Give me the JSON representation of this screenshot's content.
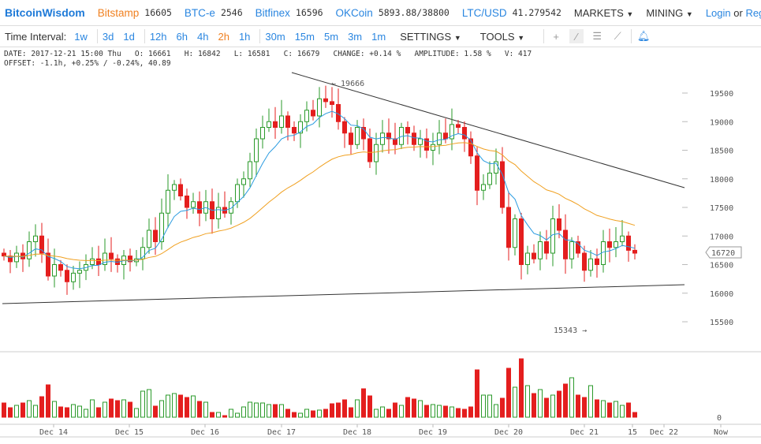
{
  "header": {
    "brand": "BitcoinWisdom",
    "markets": [
      {
        "name": "Bitstamp",
        "price": "16605"
      },
      {
        "name": "BTC-e",
        "price": "2546"
      },
      {
        "name": "Bitfinex",
        "price": "16596"
      },
      {
        "name": "OKCoin",
        "price": "5893.88/38800"
      },
      {
        "name": "LTC/USD",
        "price": "41.279542"
      }
    ],
    "menu_markets": "MARKETS",
    "menu_mining": "MINING",
    "login": "Login",
    "or": "or",
    "register": "Regis"
  },
  "toolbar": {
    "label": "Time Interval:",
    "intervals": [
      "1w",
      "3d",
      "1d",
      "12h",
      "6h",
      "4h",
      "2h",
      "1h",
      "30m",
      "15m",
      "5m",
      "3m",
      "1m"
    ],
    "selected": "2h",
    "settings": "SETTINGS",
    "tools": "TOOLS"
  },
  "info": {
    "line1": "DATE: 2017-12-21 15:00 Thu   O: 16661   H: 16842   L: 16581   C: 16679   CHANGE: +0.14 %   AMPLITUDE: 1.58 %   V: 417",
    "line2": "OFFSET: -1.1h, +0.25% / -0.24%, 40.89"
  },
  "colors": {
    "up": "#2a9a2a",
    "down": "#e41e1e",
    "ma_fast": "#2a9be0",
    "ma_slow": "#f0a020"
  },
  "chart_data": {
    "type": "candlestick",
    "y_ticks": [
      19500,
      19000,
      18500,
      18000,
      17500,
      17000,
      16500,
      16000,
      15500
    ],
    "x_labels": [
      "Dec 14",
      "Dec 15",
      "Dec 16",
      "Dec 17",
      "Dec 18",
      "Dec 19",
      "Dec 20",
      "Dec 21",
      "15",
      "Dec 22",
      "Now"
    ],
    "current_price": "16720",
    "high_note": "← 19666",
    "low_note": "15343 →",
    "volume_axis_label": "0",
    "closes": [
      16650,
      16550,
      16700,
      16600,
      16900,
      17000,
      16700,
      16300,
      16500,
      16400,
      16200,
      16350,
      16400,
      16500,
      16600,
      16500,
      16700,
      16600,
      16500,
      16650,
      16550,
      16600,
      16800,
      17100,
      16900,
      17400,
      17800,
      17900,
      17700,
      17500,
      17600,
      17400,
      17600,
      17300,
      17500,
      17400,
      17600,
      17900,
      18000,
      18300,
      18700,
      18900,
      19000,
      18900,
      19100,
      18900,
      18800,
      19000,
      19200,
      19100,
      19400,
      19350,
      19300,
      19000,
      18800,
      18600,
      18900,
      18700,
      18300,
      18600,
      18800,
      18700,
      18600,
      18900,
      18800,
      18600,
      18700,
      18500,
      18600,
      18800,
      18700,
      18950,
      18900,
      18700,
      18400,
      17800,
      17900,
      18100,
      18300,
      17500,
      16800,
      17300,
      16500,
      16700,
      16600,
      16900,
      16700,
      17300,
      17100,
      16600,
      16900,
      16700,
      16400,
      16600,
      16500,
      16900,
      16800,
      16900,
      17000,
      16750,
      16700
    ],
    "volumes": [
      18,
      12,
      15,
      18,
      21,
      15,
      26,
      41,
      20,
      13,
      12,
      16,
      14,
      10,
      22,
      12,
      19,
      23,
      21,
      22,
      19,
      11,
      33,
      35,
      14,
      21,
      28,
      30,
      28,
      25,
      27,
      20,
      19,
      6,
      6,
      2,
      10,
      5,
      13,
      19,
      18,
      18,
      16,
      16,
      16,
      10,
      6,
      5,
      10,
      8,
      9,
      10,
      17,
      18,
      22,
      12,
      22,
      36,
      27,
      10,
      13,
      10,
      18,
      15,
      25,
      23,
      21,
      15,
      16,
      15,
      14,
      13,
      11,
      10,
      13,
      60,
      28,
      28,
      16,
      24,
      62,
      38,
      74,
      40,
      30,
      35,
      24,
      28,
      33,
      42,
      50,
      28,
      25,
      40,
      22,
      21,
      18,
      20,
      15,
      18,
      6
    ]
  }
}
